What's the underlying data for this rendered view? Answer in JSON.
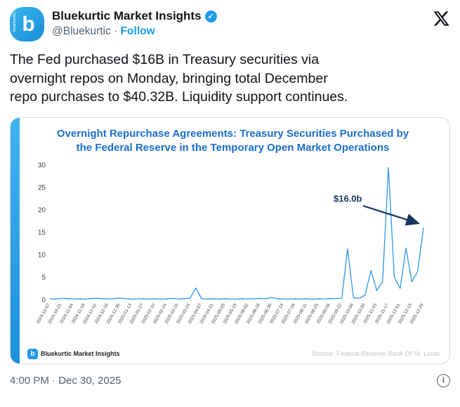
{
  "header": {
    "name": "Bluekurtic Market Insights",
    "handle": "@Bluekurtic",
    "dot": "·",
    "follow": "Follow",
    "avatar_letter": "b",
    "avatar_brand": "bluekurtic",
    "verified_check": "✓"
  },
  "tweet": {
    "text": "The Fed purchased $16B in Treasury securities via\novernight repos on Monday, bringing total December\nrepo purchases to $40.32B. Liquidity support continues."
  },
  "card": {
    "title": "Overnight Repurchase Agreements: Treasury Securities Purchased by\nthe Federal Reserve in the Temporary Open Market Operations",
    "brand": "Bluekurtic Market Insights",
    "brand_letter": "b",
    "source": "Source: Federal Reserve Bank Of St. Louis"
  },
  "footer": {
    "timestamp": "4:00 PM · Dec 30, 2025",
    "info_glyph": "i"
  },
  "colors": {
    "accent_blue": "#1d9bf0",
    "title_blue": "#1a6fce",
    "chart_line": "#2e96ea",
    "annotation_navy": "#16355f"
  },
  "chart_data": {
    "type": "line",
    "title": "Overnight Repurchase Agreements: Treasury Securities Purchased by the Federal Reserve in the Temporary Open Market Operations",
    "xlabel": "",
    "ylabel": "",
    "ylim": [
      0,
      30
    ],
    "yticks": [
      0,
      5,
      10,
      15,
      20,
      25,
      30
    ],
    "grid": false,
    "legend": false,
    "line_color": "#2e96ea",
    "annotation": {
      "text": "$16.0b",
      "target_y": 16.05,
      "color": "#16355f"
    },
    "source": "Source: Federal Reserve Bank Of St. Louis",
    "x": [
      "2024-10-07",
      "2024-10-14",
      "2024-10-21",
      "2024-10-28",
      "2024-11-04",
      "2024-11-11",
      "2024-11-18",
      "2024-11-25",
      "2024-12-02",
      "2024-12-09",
      "2024-12-16",
      "2024-12-23",
      "2024-12-30",
      "2025-01-06",
      "2025-01-13",
      "2025-01-20",
      "2025-01-27",
      "2025-02-03",
      "2025-02-10",
      "2025-02-17",
      "2025-02-24",
      "2025-03-03",
      "2025-03-10",
      "2025-03-17",
      "2025-03-24",
      "2025-03-31",
      "2025-04-07",
      "2025-04-14",
      "2025-04-21",
      "2025-04-28",
      "2025-05-05",
      "2025-05-12",
      "2025-05-19",
      "2025-05-26",
      "2025-06-02",
      "2025-06-09",
      "2025-06-16",
      "2025-06-23",
      "2025-06-30",
      "2025-07-07",
      "2025-07-14",
      "2025-07-21",
      "2025-07-28",
      "2025-08-04",
      "2025-08-11",
      "2025-08-18",
      "2025-08-25",
      "2025-09-01",
      "2025-09-08",
      "2025-09-15",
      "2025-09-22",
      "2025-09-29",
      "2025-10-06",
      "2025-10-13",
      "2025-10-20",
      "2025-10-27",
      "2025-11-03",
      "2025-11-10",
      "2025-11-17",
      "2025-11-24",
      "2025-12-01",
      "2025-12-08",
      "2025-12-15",
      "2025-12-22",
      "2025-12-29"
    ],
    "values": [
      0.2,
      0.1,
      0.25,
      0.2,
      0.15,
      0.2,
      0.1,
      0.2,
      0.3,
      0.2,
      0.15,
      0.2,
      0.35,
      0.2,
      0.1,
      0.15,
      0.2,
      0.15,
      0.2,
      0.1,
      0.2,
      0.25,
      0.15,
      0.2,
      0.3,
      2.6,
      0.2,
      0.15,
      0.2,
      0.1,
      0.2,
      0.15,
      0.1,
      0.2,
      0.15,
      0.2,
      0.25,
      0.2,
      0.5,
      0.2,
      0.15,
      0.1,
      0.2,
      0.15,
      0.2,
      0.1,
      0.2,
      0.15,
      0.2,
      0.25,
      0.3,
      11.3,
      0.4,
      0.3,
      1.0,
      6.5,
      2.0,
      4.0,
      29.4,
      5.0,
      2.5,
      11.5,
      3.97,
      6.3,
      16.05
    ]
  }
}
